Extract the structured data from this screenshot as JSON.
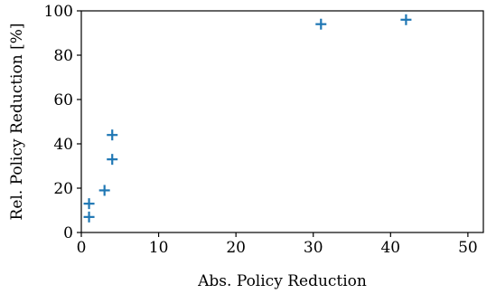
{
  "chart_data": {
    "type": "scatter",
    "title": "",
    "xlabel": "Abs. Policy Reduction",
    "ylabel": "Rel. Policy Reduction [%]",
    "xlim": [
      0,
      52
    ],
    "ylim": [
      0,
      100
    ],
    "xticks": [
      0,
      10,
      20,
      30,
      40,
      50
    ],
    "yticks": [
      0,
      20,
      40,
      60,
      80,
      100
    ],
    "grid": false,
    "marker": "plus",
    "color": "#1f77b4",
    "series": [
      {
        "x": [
          1,
          1,
          3,
          4,
          4,
          31,
          42
        ],
        "y": [
          7,
          13,
          19,
          33,
          44,
          94,
          96
        ]
      }
    ]
  }
}
